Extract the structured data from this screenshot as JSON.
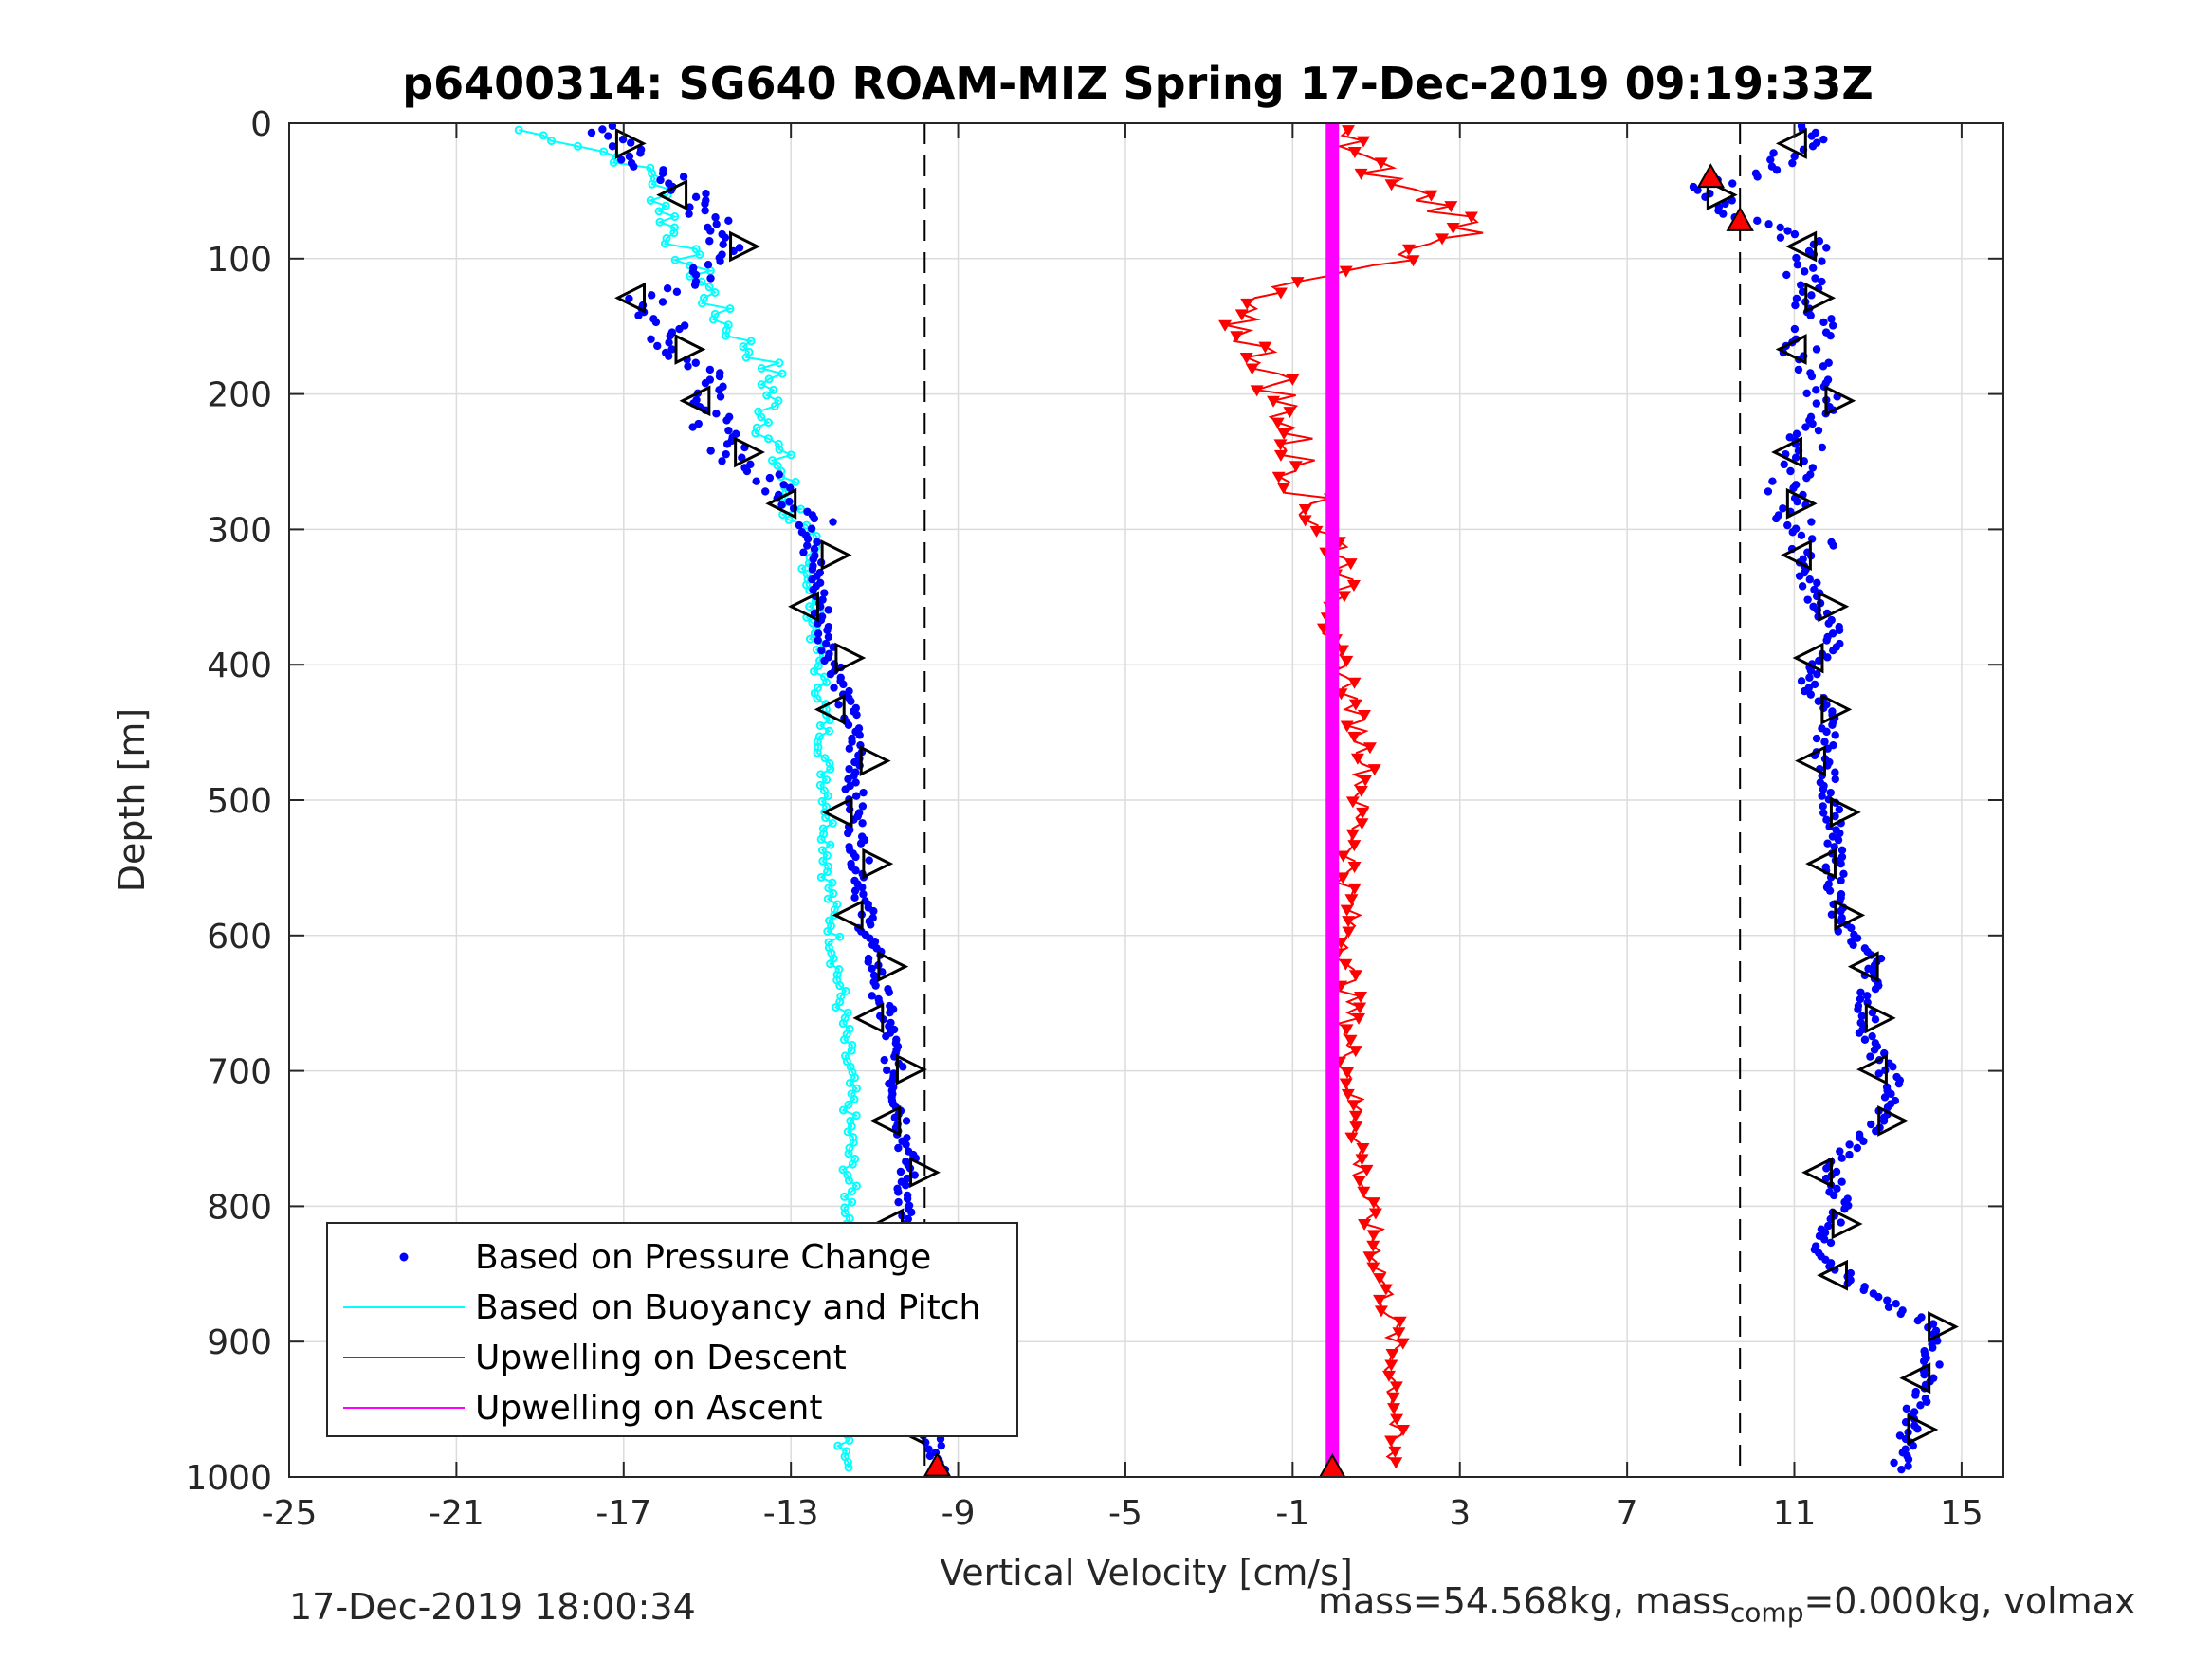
{
  "chart_data": {
    "type": "scatter",
    "title": "p6400314: SG640 ROAM-MIZ Spring 17-Dec-2019 09:19:33Z",
    "xlabel": "Vertical Velocity [cm/s]",
    "ylabel": "Depth [m]",
    "xlim": [
      -25,
      16
    ],
    "ylim": [
      1000,
      0
    ],
    "y_reversed": true,
    "grid": true,
    "xticks": [
      -25,
      -21,
      -17,
      -13,
      -9,
      -5,
      -1,
      3,
      7,
      11,
      15
    ],
    "yticks": [
      0,
      100,
      200,
      300,
      400,
      500,
      600,
      700,
      800,
      900,
      1000
    ],
    "vertical_reference_lines": [
      -9.8,
      9.7
    ],
    "legend": {
      "placement": "bottom-left",
      "entries": [
        {
          "label": "Based on Pressure Change",
          "color": "#0000ff",
          "marker": "dot"
        },
        {
          "label": "Based on Buoyancy and Pitch",
          "color": "#00ffff",
          "marker": "line"
        },
        {
          "label": "Upwelling on Descent",
          "color": "#ff0000",
          "marker": "line"
        },
        {
          "label": "Upwelling on Ascent",
          "color": "#ff00ff",
          "marker": "line"
        }
      ]
    },
    "series": [
      {
        "name": "Based on Pressure Change",
        "color": "#0000ff",
        "descent": {
          "depth": [
            10,
            30,
            50,
            70,
            90,
            110,
            130,
            150,
            170,
            190,
            210,
            230,
            250,
            270,
            290,
            310,
            330,
            350,
            380,
            410,
            440,
            470,
            500,
            530,
            560,
            590,
            620,
            650,
            680,
            710,
            740,
            770,
            800,
            830,
            860,
            890,
            920,
            950,
            980
          ],
          "velocity": [
            -17.5,
            -16.5,
            -15.5,
            -15,
            -14.5,
            -15,
            -16.5,
            -16,
            -15.8,
            -14.5,
            -15,
            -14.8,
            -14.2,
            -13.2,
            -12.5,
            -12.2,
            -12.5,
            -12.3,
            -12.2,
            -11.8,
            -11.6,
            -11.4,
            -11.5,
            -11.4,
            -11.3,
            -11.2,
            -11,
            -10.8,
            -10.6,
            -10.5,
            -10.3,
            -10.2,
            -10.3,
            -10.2,
            -10.1,
            -10,
            -10,
            -10,
            -9.5
          ]
        },
        "ascent": {
          "depth": [
            10,
            30,
            50,
            70,
            90,
            110,
            130,
            150,
            170,
            190,
            210,
            230,
            250,
            270,
            290,
            310,
            330,
            350,
            380,
            410,
            440,
            470,
            500,
            530,
            560,
            590,
            620,
            650,
            680,
            710,
            740,
            770,
            800,
            830,
            860,
            890,
            920,
            950,
            980
          ],
          "velocity": [
            11.5,
            10.5,
            8.8,
            9.8,
            11.5,
            11.2,
            11.3,
            11.5,
            11.2,
            11.7,
            11.8,
            11.4,
            11,
            10.8,
            10.9,
            11.5,
            11.2,
            11.5,
            12,
            11.3,
            11.8,
            11.7,
            11.9,
            11.9,
            12,
            12,
            13,
            12.7,
            12.8,
            13.4,
            13,
            11.8,
            12.2,
            11.6,
            12.5,
            14.3,
            14.3,
            13.9,
            13.6
          ]
        }
      },
      {
        "name": "Based on Buoyancy and Pitch",
        "color": "#00ffff",
        "descent": {
          "depth": [
            5,
            20,
            40,
            60,
            80,
            100,
            120,
            140,
            160,
            180,
            200,
            230,
            260,
            290,
            320,
            350,
            380,
            410,
            440,
            470,
            500,
            530,
            560,
            590,
            620,
            650,
            680,
            710,
            740,
            770,
            800,
            830,
            860,
            890,
            920,
            950,
            980,
            995
          ],
          "velocity": [
            -19.5,
            -17.5,
            -16.2,
            -16,
            -15.8,
            -15.5,
            -15,
            -14.8,
            -14.2,
            -13.5,
            -13.5,
            -13.5,
            -13.2,
            -12.9,
            -12.6,
            -12.5,
            -12.4,
            -12.3,
            -12.2,
            -12.2,
            -12.1,
            -12.1,
            -12.1,
            -12,
            -11.9,
            -11.8,
            -11.7,
            -11.6,
            -11.6,
            -11.6,
            -11.6,
            -11.6,
            -11.7,
            -11.7,
            -11.8,
            -11.8,
            -11.7,
            -11.5
          ]
        }
      },
      {
        "name": "Upwelling on Descent",
        "color": "#ff0000",
        "depth": [
          5,
          20,
          40,
          60,
          80,
          100,
          120,
          140,
          160,
          180,
          200,
          230,
          260,
          290,
          320,
          350,
          380,
          410,
          440,
          470,
          500,
          530,
          560,
          590,
          620,
          650,
          680,
          710,
          740,
          770,
          800,
          830,
          860,
          890,
          920,
          950,
          980,
          995
        ],
        "velocity": [
          0,
          0.5,
          1.2,
          2.5,
          3.5,
          1.5,
          -1.5,
          -2.5,
          -2,
          -1.5,
          -1.3,
          -1,
          -0.8,
          -0.5,
          0.3,
          0.2,
          -0.2,
          0.3,
          0.5,
          0.8,
          0.6,
          0.5,
          0.3,
          0.4,
          0.3,
          0.4,
          0.3,
          0.4,
          0.6,
          0.6,
          0.8,
          1,
          1.2,
          1.4,
          1.4,
          1.5,
          1.3,
          1.5
        ]
      },
      {
        "name": "Upwelling on Ascent",
        "color": "#ff00ff",
        "depth": [
          0,
          1000
        ],
        "velocity": [
          -0.05,
          -0.05
        ]
      }
    ]
  },
  "footer": {
    "left": "17-Dec-2019 18:00:34",
    "right_prefix": "mass=54.568kg, mass",
    "right_sub": "comp",
    "right_suffix": "=0.000kg, volmax"
  }
}
